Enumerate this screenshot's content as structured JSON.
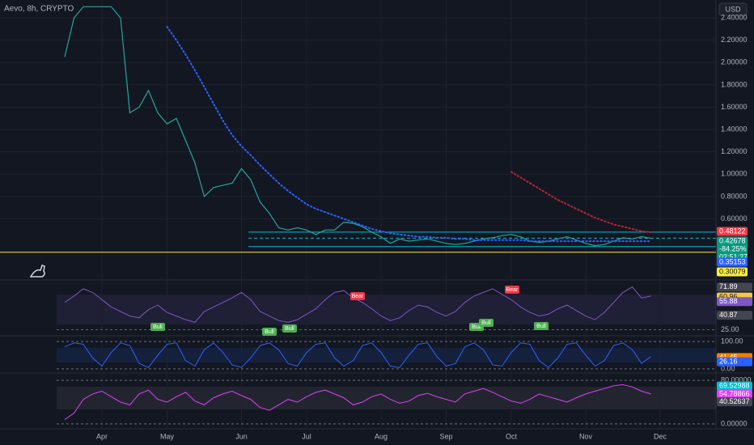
{
  "chart_data": [
    {
      "type": "line",
      "title": "Aevo, 8h, CRYPTO",
      "currency": "USD",
      "categories": [
        null,
        null,
        null,
        null,
        "Apr",
        null,
        null,
        null,
        null,
        null,
        null,
        "May",
        null,
        null,
        null,
        null,
        null,
        null,
        null,
        "Jun",
        null,
        null,
        null,
        null,
        null,
        null,
        "Jul",
        null,
        null,
        null,
        null,
        null,
        null,
        null,
        "Aug",
        null,
        null,
        null,
        null,
        null,
        null,
        "Sep",
        null,
        null,
        null,
        null,
        null,
        null,
        "Oct",
        null,
        null,
        null,
        null,
        null,
        null,
        null,
        "Nov",
        null,
        null,
        null,
        null,
        null,
        null,
        null,
        "Dec"
      ],
      "series": [
        {
          "color": "#26a69a",
          "values": [
            2.05,
            2.4,
            2.5,
            2.5,
            2.5,
            2.5,
            2.4,
            1.55,
            1.6,
            1.75,
            1.55,
            1.45,
            1.5,
            1.3,
            1.1,
            0.8,
            0.88,
            0.9,
            0.92,
            1.05,
            0.95,
            0.75,
            0.65,
            0.52,
            0.5,
            0.52,
            0.5,
            0.46,
            0.5,
            0.5,
            0.57,
            0.56,
            0.53,
            0.48,
            0.44,
            0.38,
            0.42,
            0.4,
            0.41,
            0.42,
            0.4,
            0.38,
            0.37,
            0.38,
            0.4,
            0.42,
            0.43,
            0.45,
            0.46,
            0.44,
            0.4,
            0.39,
            0.4,
            0.42,
            0.44,
            0.41,
            0.38,
            0.36,
            0.37,
            0.4,
            0.43,
            0.42,
            0.44,
            0.427,
            null
          ]
        },
        {
          "color": "#2962ff",
          "dotted": true,
          "values": [
            null,
            null,
            null,
            null,
            null,
            null,
            null,
            null,
            null,
            null,
            null,
            2.32,
            2.2,
            2.07,
            1.93,
            1.78,
            1.63,
            1.48,
            1.35,
            1.25,
            1.17,
            1.08,
            1.0,
            0.92,
            0.85,
            0.79,
            0.73,
            0.69,
            0.66,
            0.63,
            0.6,
            0.57,
            0.54,
            0.51,
            0.49,
            0.47,
            0.46,
            0.45,
            0.44,
            0.44,
            0.43,
            0.43,
            0.42,
            0.42,
            0.41,
            0.41,
            0.41,
            0.41,
            0.41,
            0.41,
            0.4,
            0.4,
            0.4,
            0.4,
            0.4,
            0.4,
            0.4,
            0.4,
            0.4,
            0.4,
            0.4,
            0.4,
            0.4,
            0.4,
            null
          ]
        },
        {
          "color": "#b22833",
          "dotted": true,
          "values": [
            null,
            null,
            null,
            null,
            null,
            null,
            null,
            null,
            null,
            null,
            null,
            null,
            null,
            null,
            null,
            null,
            null,
            null,
            null,
            null,
            null,
            null,
            null,
            null,
            null,
            null,
            null,
            null,
            null,
            null,
            null,
            null,
            null,
            null,
            null,
            null,
            null,
            null,
            null,
            null,
            null,
            null,
            null,
            null,
            null,
            null,
            null,
            null,
            1.02,
            0.97,
            0.92,
            0.87,
            0.82,
            0.77,
            0.73,
            0.69,
            0.65,
            0.61,
            0.58,
            0.55,
            0.53,
            0.51,
            0.49,
            0.48,
            null
          ]
        }
      ],
      "ylim": [
        0.06,
        2.56
      ],
      "yticks": [
        {
          "value": 2.4,
          "label": "2.40000"
        },
        {
          "value": 2.2,
          "label": "2.20000"
        },
        {
          "value": 2.0,
          "label": "2.00000"
        },
        {
          "value": 1.8,
          "label": "1.80000"
        },
        {
          "value": 1.6,
          "label": "1.60000"
        },
        {
          "value": 1.4,
          "label": "1.40000"
        },
        {
          "value": 1.2,
          "label": "1.20000"
        },
        {
          "value": 1.0,
          "label": "1.00000"
        },
        {
          "value": 0.8,
          "label": "0.80000"
        },
        {
          "value": 0.6,
          "label": "0.60000"
        }
      ],
      "grid": true,
      "levels": [
        {
          "value": 0.48122,
          "label": "0.48122",
          "color": "#f23645"
        },
        {
          "value": 0.42678,
          "label": "0.42678",
          "color": "#089981",
          "change": "-84.25%",
          "countdown": "02:51:27"
        },
        {
          "value": 0.35153,
          "label": "0.35153",
          "color": "#2962ff"
        },
        {
          "value": 0.30079,
          "label": "0.30079",
          "color": "#ffeb3b"
        }
      ]
    },
    {
      "type": "line",
      "color": "#7e57c2",
      "values": [
        55,
        62,
        70,
        66,
        58,
        50,
        45,
        40,
        38,
        47,
        52,
        44,
        40,
        36,
        33,
        45,
        50,
        55,
        60,
        66,
        58,
        45,
        40,
        35,
        33,
        36,
        42,
        48,
        58,
        66,
        68,
        60,
        55,
        48,
        40,
        35,
        38,
        46,
        52,
        50,
        44,
        40,
        45,
        55,
        62,
        66,
        70,
        64,
        58,
        50,
        44,
        40,
        42,
        48,
        52,
        46,
        40,
        36,
        44,
        55,
        66,
        72,
        60,
        62,
        null
      ],
      "ylim": [
        20,
        78
      ],
      "yticks": [
        {
          "value": 25,
          "label": "25.00"
        }
      ],
      "badges": [
        {
          "value": 71.89,
          "label": "71.89",
          "color": "#434651"
        },
        {
          "value": 60.96,
          "label": "60.96",
          "color": "#f7c548"
        },
        {
          "value": 55.88,
          "label": "55.88",
          "color": "#7e57c2"
        },
        {
          "value": 40.87,
          "label": "40.87",
          "color": "#434651"
        }
      ],
      "annotations": [
        "Bull",
        "Bull",
        "Bull",
        "Bull",
        "Bull",
        "Bull",
        "Bear",
        "Bear"
      ]
    },
    {
      "type": "line",
      "color": "#2962ff",
      "values": [
        80,
        95,
        90,
        40,
        10,
        60,
        95,
        85,
        20,
        5,
        50,
        90,
        95,
        30,
        10,
        70,
        95,
        60,
        15,
        5,
        40,
        85,
        95,
        70,
        20,
        10,
        60,
        90,
        95,
        40,
        10,
        30,
        85,
        95,
        60,
        10,
        5,
        50,
        90,
        95,
        45,
        10,
        20,
        80,
        95,
        70,
        15,
        10,
        60,
        95,
        90,
        30,
        5,
        40,
        90,
        95,
        50,
        10,
        30,
        85,
        95,
        70,
        20,
        45,
        null
      ],
      "ylim": [
        -12,
        112
      ],
      "yticks": [
        {
          "value": 100,
          "label": "100.00"
        },
        {
          "value": 0,
          "label": "0.00"
        }
      ],
      "badges": [
        {
          "value": 41.45,
          "label": "41.45",
          "color": "#f57c00"
        },
        {
          "value": 26.16,
          "label": "26.16",
          "color": "#2962ff"
        }
      ]
    },
    {
      "type": "line",
      "color": "#e040fb",
      "values": [
        8,
        20,
        45,
        55,
        60,
        50,
        40,
        35,
        55,
        62,
        45,
        40,
        50,
        58,
        42,
        35,
        48,
        55,
        60,
        52,
        45,
        30,
        25,
        35,
        45,
        40,
        50,
        58,
        62,
        55,
        48,
        35,
        40,
        50,
        55,
        45,
        38,
        42,
        52,
        56,
        50,
        45,
        40,
        55,
        60,
        65,
        58,
        50,
        42,
        38,
        45,
        55,
        50,
        45,
        40,
        48,
        55,
        60,
        65,
        70,
        72,
        68,
        60,
        55,
        null
      ],
      "ylim": [
        -9,
        92
      ],
      "yticks": [
        {
          "value": 80,
          "label": "80.00000"
        },
        {
          "value": 0,
          "label": "0.00000"
        }
      ],
      "badges": [
        {
          "value": 69.52988,
          "label": "69.52988",
          "color": "#00bcd4"
        },
        {
          "value": 54.78866,
          "label": "54.78866",
          "color": "#e040fb"
        },
        {
          "value": 40.52637,
          "label": "40.52637",
          "color": "#434651"
        }
      ]
    }
  ]
}
